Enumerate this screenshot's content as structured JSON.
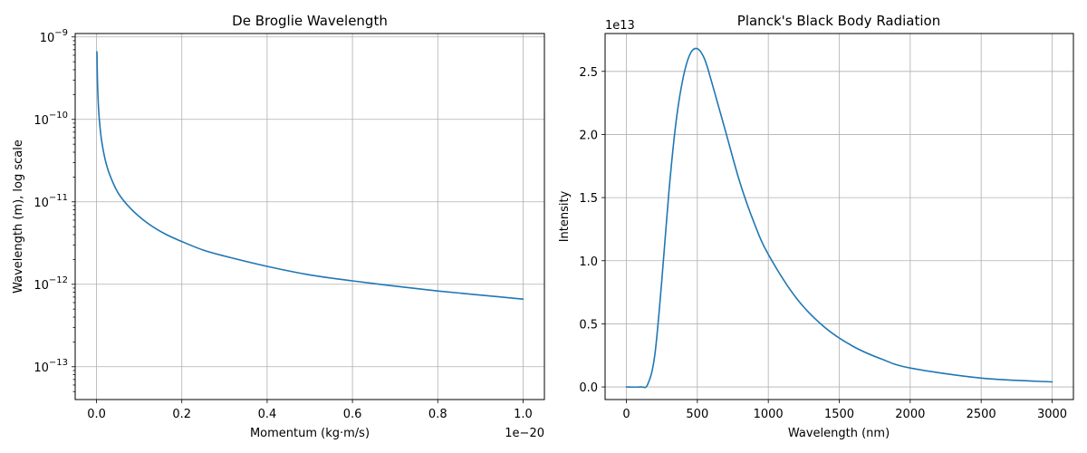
{
  "colors": {
    "series": "#1f77b4",
    "grid": "#b0b0b0"
  },
  "chart_data": [
    {
      "type": "line",
      "title": "De Broglie Wavelength",
      "xlabel": "Momentum (kg·m/s)",
      "ylabel": "Wavelength (m), log scale",
      "x_offset_label": "1e−20",
      "yscale": "log",
      "xlim": [
        -0.05,
        1.05
      ],
      "ylim": [
        4e-14,
        1.1e-09
      ],
      "grid": true,
      "xticks": [
        0.0,
        0.2,
        0.4,
        0.6,
        0.8,
        1.0
      ],
      "xtick_labels": [
        "0.0",
        "0.2",
        "0.4",
        "0.6",
        "0.8",
        "1.0"
      ],
      "yticks": [
        1e-13,
        1e-12,
        1e-11,
        1e-10,
        1e-09
      ],
      "ytick_labels": [
        [
          "10",
          "−13"
        ],
        [
          "10",
          "−12"
        ],
        [
          "10",
          "−11"
        ],
        [
          "10",
          "−10"
        ],
        [
          "10",
          "−9"
        ]
      ],
      "series": [
        {
          "x": [
            0.001,
            0.002,
            0.003,
            0.005,
            0.008,
            0.012,
            0.02,
            0.03,
            0.05,
            0.08,
            0.12,
            0.16,
            0.2,
            0.25,
            0.3,
            0.4,
            0.5,
            0.6,
            0.7,
            0.8,
            0.9,
            1.0
          ],
          "y": [
            6.6e-10,
            3.3e-10,
            2.2e-10,
            1.3e-10,
            8.3e-11,
            5.5e-11,
            3.3e-11,
            2.2e-11,
            1.3e-11,
            8.3e-12,
            5.5e-12,
            4.1e-12,
            3.3e-12,
            2.6e-12,
            2.2e-12,
            1.65e-12,
            1.3e-12,
            1.1e-12,
            9.5e-13,
            8.3e-13,
            7.4e-13,
            6.6e-13
          ]
        }
      ]
    },
    {
      "type": "line",
      "title": "Planck's Black Body Radiation",
      "xlabel": "Wavelength (nm)",
      "ylabel": "Intensity",
      "y_offset_label": "1e13",
      "xlim": [
        -150,
        3150
      ],
      "ylim": [
        -0.1,
        2.8
      ],
      "grid": true,
      "xticks": [
        0,
        500,
        1000,
        1500,
        2000,
        2500,
        3000
      ],
      "xtick_labels": [
        "0",
        "500",
        "1000",
        "1500",
        "2000",
        "2500",
        "3000"
      ],
      "yticks": [
        0.0,
        0.5,
        1.0,
        1.5,
        2.0,
        2.5
      ],
      "ytick_labels": [
        "0.0",
        "0.5",
        "1.0",
        "1.5",
        "2.0",
        "2.5"
      ],
      "series": [
        {
          "x": [
            0,
            100,
            150,
            200,
            250,
            300,
            350,
            400,
            450,
            500,
            550,
            600,
            700,
            800,
            900,
            1000,
            1200,
            1400,
            1600,
            1800,
            2000,
            2500,
            3000
          ],
          "y": [
            0.0,
            0.0,
            0.02,
            0.25,
            0.85,
            1.55,
            2.1,
            2.45,
            2.64,
            2.68,
            2.6,
            2.42,
            2.02,
            1.62,
            1.3,
            1.05,
            0.7,
            0.47,
            0.32,
            0.22,
            0.15,
            0.07,
            0.04
          ]
        }
      ]
    }
  ]
}
